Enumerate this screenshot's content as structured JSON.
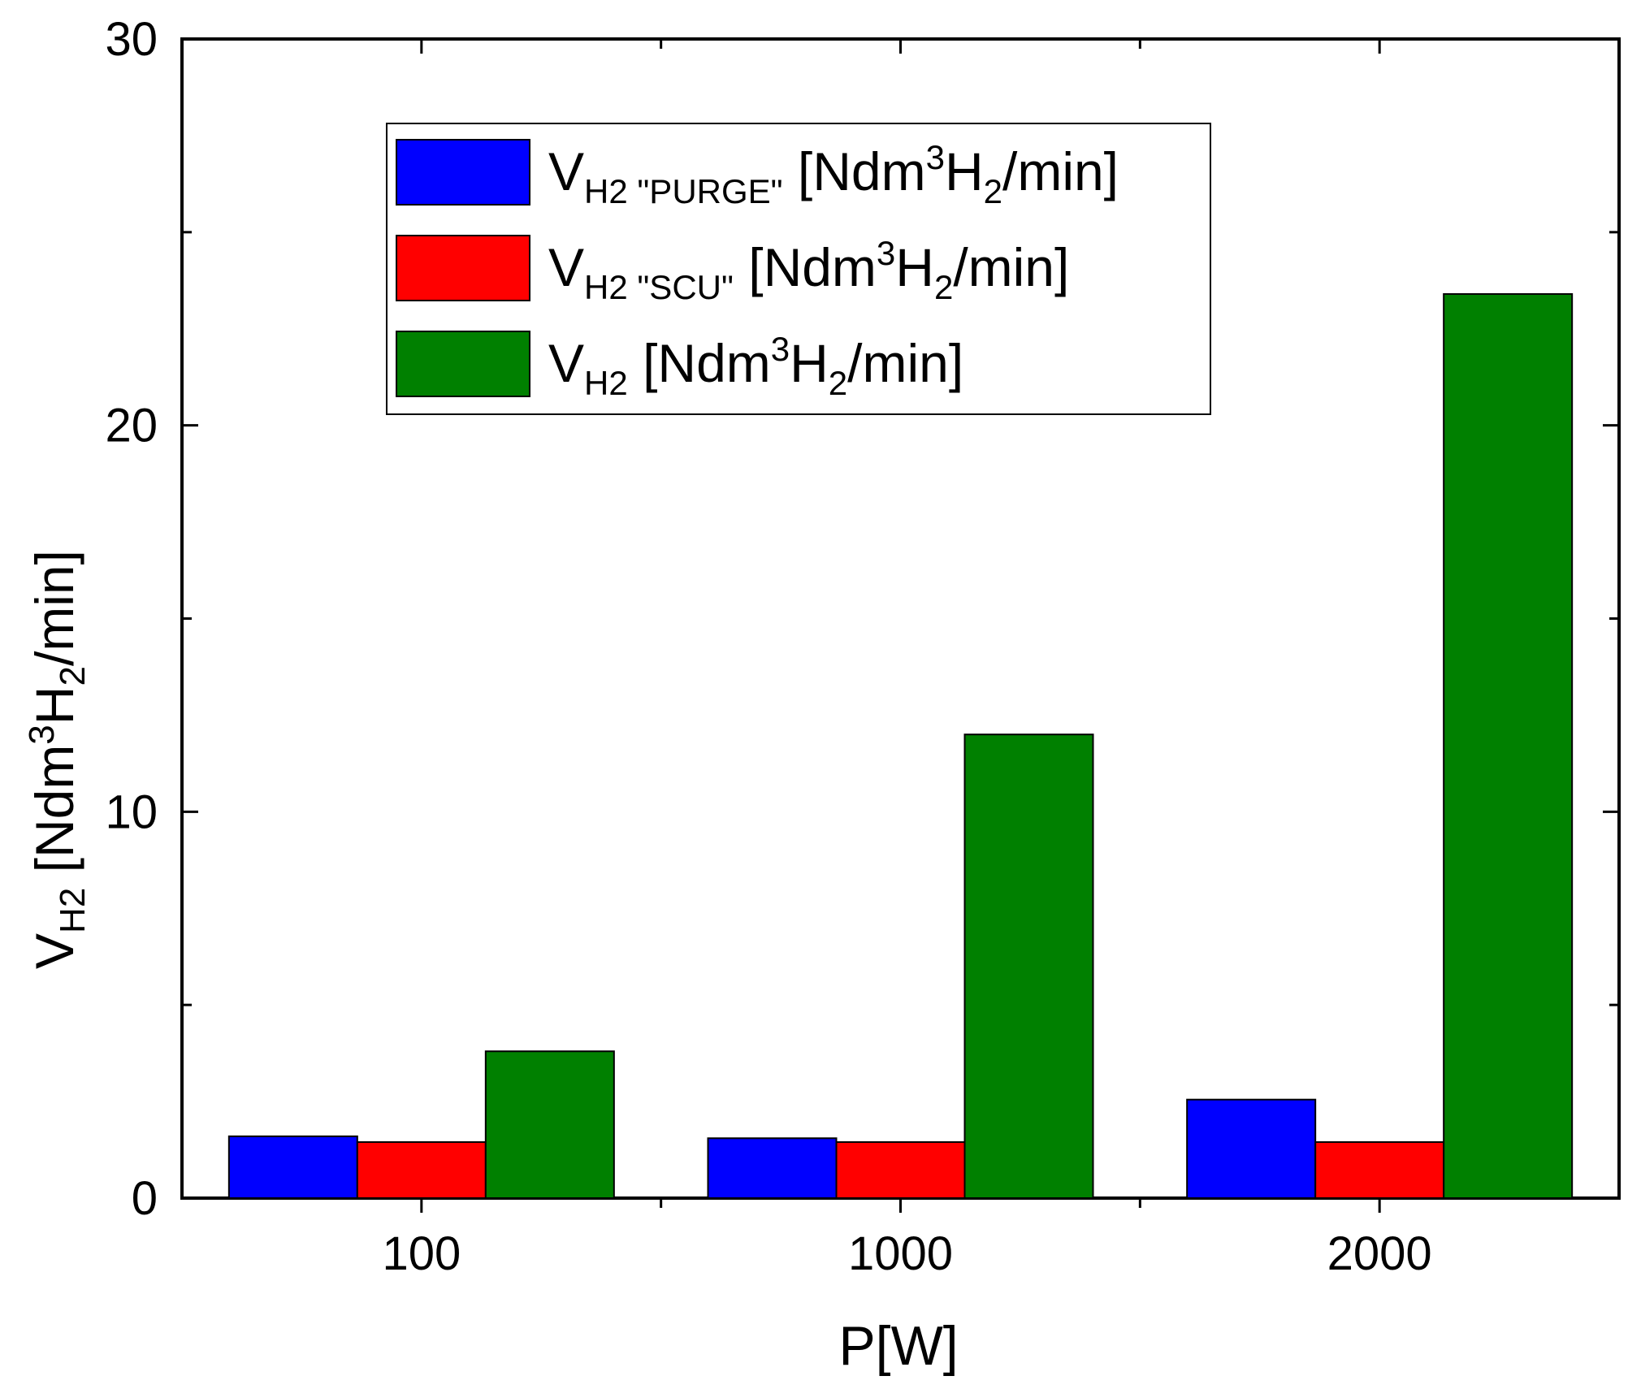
{
  "chart_data": {
    "type": "bar",
    "title": "",
    "categories": [
      "100",
      "1000",
      "2000"
    ],
    "series": [
      {
        "name": "V_H2 \"PURGE\" [Ndm3H2/min]",
        "legend": {
          "main": "V",
          "sub": "H2 \"PURGE\"",
          "unit_a": " [Ndm",
          "sup": "3",
          "unit_b": "H",
          "sub2": "2",
          "unit_c": "/min]"
        },
        "color": "#0000ff",
        "values": [
          1.6,
          1.55,
          2.55
        ]
      },
      {
        "name": "V_H2 \"SCU\" [Ndm3H2/min]",
        "legend": {
          "main": "V",
          "sub": "H2 \"SCU\"",
          "unit_a": " [Ndm",
          "sup": "3",
          "unit_b": "H",
          "sub2": "2",
          "unit_c": "/min]"
        },
        "color": "#ff0000",
        "values": [
          1.45,
          1.45,
          1.45
        ]
      },
      {
        "name": "V_H2 [Ndm3H2/min]",
        "legend": {
          "main": "V",
          "sub": "H2",
          "unit_a": " [Ndm",
          "sup": "3",
          "unit_b": "H",
          "sub2": "2",
          "unit_c": "/min]"
        },
        "color": "#008000",
        "values": [
          3.8,
          12.0,
          23.4
        ]
      }
    ],
    "xlabel": "P[W]",
    "ylabel": {
      "main": "V",
      "sub": "H2",
      "unit_a": " [Ndm",
      "sup": "3",
      "unit_b": "H",
      "sub2": "2",
      "unit_c": "/min]"
    },
    "ylim": [
      0,
      30
    ],
    "yticks": [
      "0",
      "10",
      "20",
      "30"
    ],
    "grid": false,
    "legend_position": "top-left"
  }
}
